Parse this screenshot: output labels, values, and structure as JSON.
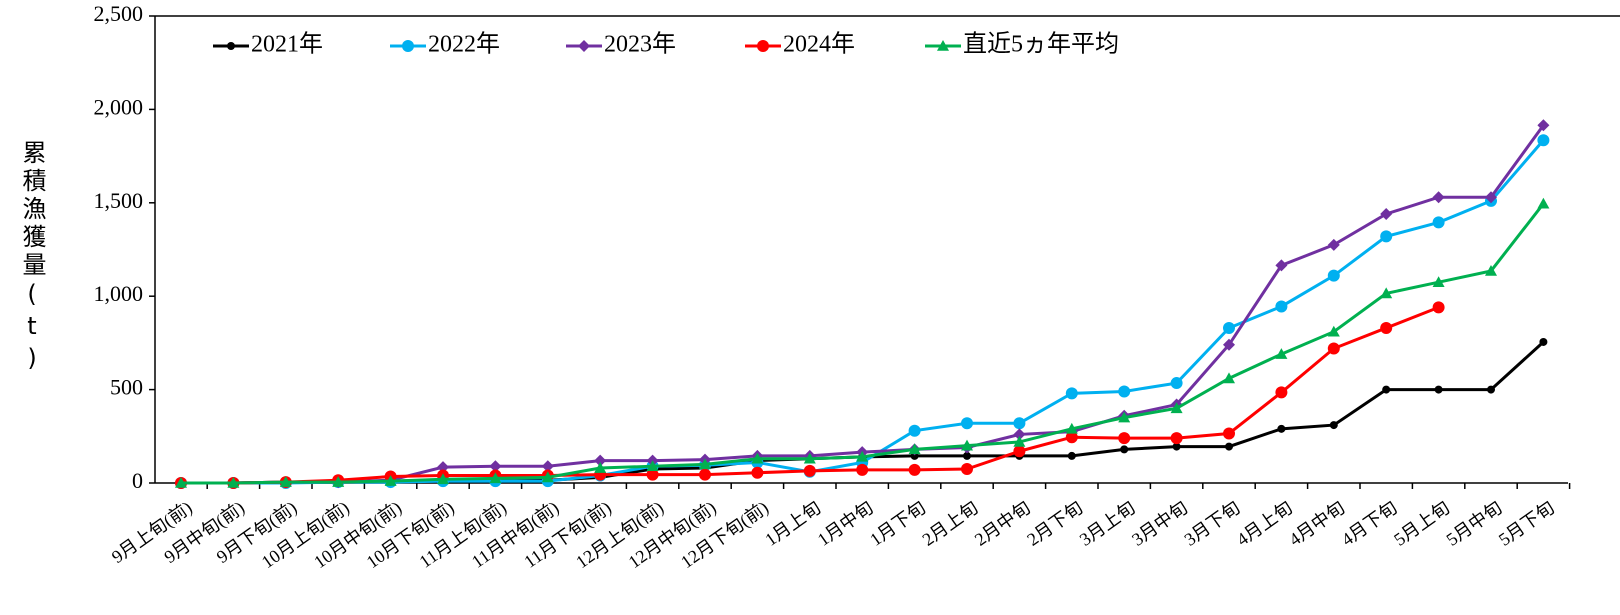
{
  "chart_data": {
    "type": "line",
    "y_label": "累積漁獲量(t)",
    "categories": [
      "9月上旬(前)",
      "9月中旬(前)",
      "9月下旬(前)",
      "10月上旬(前)",
      "10月中旬(前)",
      "10月下旬(前)",
      "11月上旬(前)",
      "11月中旬(前)",
      "11月下旬(前)",
      "12月上旬(前)",
      "12月中旬(前)",
      "12月下旬(前)",
      "1月上旬",
      "1月中旬",
      "1月下旬",
      "2月上旬",
      "2月中旬",
      "2月下旬",
      "3月上旬",
      "3月中旬",
      "3月下旬",
      "4月上旬",
      "4月中旬",
      "4月下旬",
      "5月上旬",
      "5月中旬",
      "5月下旬"
    ],
    "series": [
      {
        "name": "2021年",
        "color": "#000000",
        "marker": "circle",
        "marker_size": 4,
        "values": [
          0,
          0,
          5,
          5,
          10,
          15,
          15,
          15,
          30,
          75,
          80,
          120,
          130,
          140,
          145,
          145,
          145,
          145,
          180,
          195,
          195,
          290,
          310,
          500,
          500,
          500,
          755
        ]
      },
      {
        "name": "2022年",
        "color": "#00b0f0",
        "marker": "circle",
        "marker_size": 6,
        "values": [
          0,
          0,
          0,
          5,
          5,
          10,
          10,
          10,
          40,
          90,
          95,
          110,
          60,
          110,
          280,
          320,
          320,
          480,
          490,
          535,
          830,
          945,
          1110,
          1320,
          1395,
          1510,
          1835
        ]
      },
      {
        "name": "2023年",
        "color": "#7030a0",
        "marker": "diamond",
        "marker_size": 6,
        "values": [
          0,
          0,
          5,
          5,
          15,
          85,
          90,
          90,
          120,
          120,
          125,
          145,
          145,
          165,
          180,
          190,
          260,
          275,
          360,
          420,
          740,
          1165,
          1275,
          1440,
          1530,
          1530,
          1915
        ]
      },
      {
        "name": "2024年",
        "color": "#ff0000",
        "marker": "circle",
        "marker_size": 6,
        "values": [
          0,
          0,
          5,
          15,
          35,
          40,
          40,
          40,
          45,
          45,
          45,
          55,
          65,
          70,
          70,
          75,
          170,
          245,
          240,
          240,
          265,
          485,
          720,
          830,
          940,
          null,
          null
        ]
      },
      {
        "name": "直近5ヵ年平均",
        "color": "#00b050",
        "marker": "triangle",
        "marker_size": 6,
        "values": [
          0,
          0,
          5,
          5,
          10,
          20,
          25,
          30,
          80,
          90,
          100,
          130,
          130,
          140,
          180,
          200,
          220,
          290,
          350,
          400,
          560,
          690,
          810,
          1015,
          1075,
          1135,
          1495
        ]
      }
    ],
    "ylim": [
      0,
      2500
    ],
    "yticks": [
      0,
      500,
      {
        "value": 1000,
        "label": "1,000"
      },
      {
        "value": 1500,
        "label": "1,500"
      },
      {
        "value": 2000,
        "label": "2,000"
      },
      {
        "value": 2500,
        "label": "2,500"
      }
    ],
    "grid": false,
    "legend": "top-left"
  }
}
